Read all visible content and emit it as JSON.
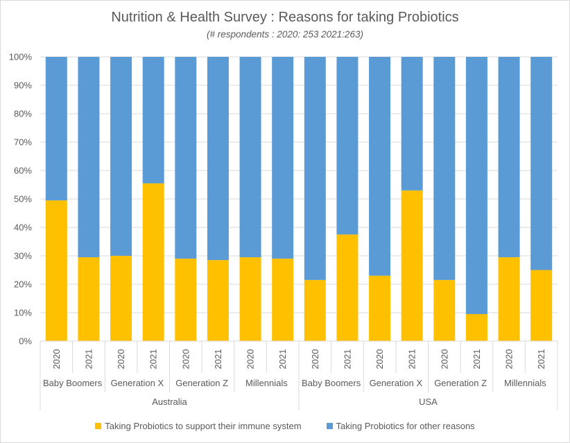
{
  "chart_data": {
    "type": "bar",
    "stacked": true,
    "percent_stacked": true,
    "title": "Nutrition & Health Survey : Reasons for taking Probiotics",
    "subtitle": "(# respondents : 2020: 253 2021:263)",
    "ylim": [
      0,
      100
    ],
    "y_ticks": [
      "0%",
      "10%",
      "20%",
      "30%",
      "40%",
      "50%",
      "60%",
      "70%",
      "80%",
      "90%",
      "100%"
    ],
    "grid": true,
    "legend_position": "bottom",
    "countries": [
      {
        "name": "Australia",
        "groups": [
          "Baby Boomers",
          "Generation X",
          "Generation Z",
          "Millennials"
        ]
      },
      {
        "name": "USA",
        "groups": [
          "Baby Boomers",
          "Generation X",
          "Generation Z",
          "Millennials"
        ]
      }
    ],
    "years": [
      "2020",
      "2021"
    ],
    "series": [
      {
        "name": "Taking Probiotics to support their immune system",
        "color": "#ffc000",
        "values": [
          49.5,
          29.5,
          30,
          55.5,
          29,
          28.5,
          29.5,
          29,
          21.5,
          37.5,
          23,
          53,
          21.5,
          9.5,
          29.5,
          25
        ]
      },
      {
        "name": "Taking Probiotics for other reasons",
        "color": "#5b9bd5",
        "values": [
          50.5,
          70.5,
          70,
          44.5,
          71,
          71.5,
          70.5,
          71,
          78.5,
          62.5,
          77,
          47,
          78.5,
          90.5,
          70.5,
          75
        ]
      }
    ]
  }
}
